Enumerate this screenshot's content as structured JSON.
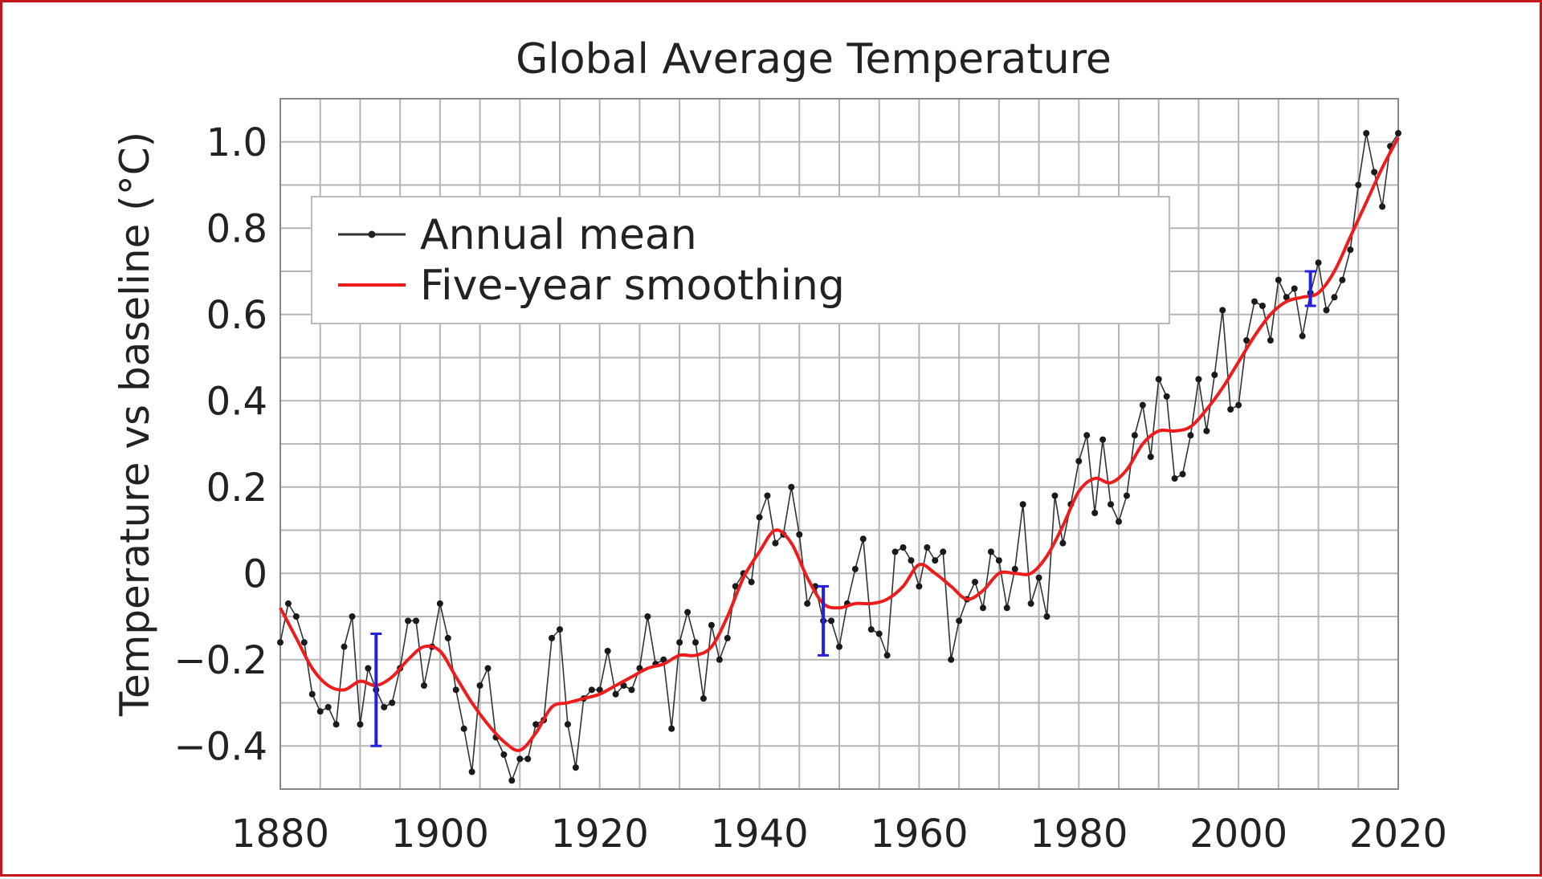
{
  "chart_data": {
    "type": "line",
    "title": "Global Average Temperature",
    "xlabel": "",
    "ylabel": "Temperature vs baseline (°C)",
    "xlim": [
      1880,
      2020
    ],
    "ylim": [
      -0.5,
      1.1
    ],
    "grid": true,
    "x_ticks": [
      1880,
      1900,
      1920,
      1940,
      1960,
      1980,
      2000,
      2020
    ],
    "x_tick_labels": [
      "1880",
      "1900",
      "1920",
      "1940",
      "1960",
      "1980",
      "2000",
      "2020"
    ],
    "y_ticks": [
      -0.4,
      -0.2,
      0,
      0.2,
      0.4,
      0.6,
      0.8,
      1.0
    ],
    "y_tick_labels": [
      "−0.4",
      "−0.2",
      "0",
      "0.2",
      "0.4",
      "0.6",
      "0.8",
      "1.0"
    ],
    "legend": {
      "position": "top-left",
      "entries": [
        "Annual mean",
        "Five-year smoothing"
      ]
    },
    "colors": {
      "annual": "#333333",
      "smoothing": "#ee1c1c",
      "error_bar": "#2222dd",
      "grid": "#b5b5b5",
      "frame": "#c4161c"
    },
    "series": [
      {
        "name": "Annual mean",
        "x": [
          1880,
          1881,
          1882,
          1883,
          1884,
          1885,
          1886,
          1887,
          1888,
          1889,
          1890,
          1891,
          1892,
          1893,
          1894,
          1895,
          1896,
          1897,
          1898,
          1899,
          1900,
          1901,
          1902,
          1903,
          1904,
          1905,
          1906,
          1907,
          1908,
          1909,
          1910,
          1911,
          1912,
          1913,
          1914,
          1915,
          1916,
          1917,
          1918,
          1919,
          1920,
          1921,
          1922,
          1923,
          1924,
          1925,
          1926,
          1927,
          1928,
          1929,
          1930,
          1931,
          1932,
          1933,
          1934,
          1935,
          1936,
          1937,
          1938,
          1939,
          1940,
          1941,
          1942,
          1943,
          1944,
          1945,
          1946,
          1947,
          1948,
          1949,
          1950,
          1951,
          1952,
          1953,
          1954,
          1955,
          1956,
          1957,
          1958,
          1959,
          1960,
          1961,
          1962,
          1963,
          1964,
          1965,
          1966,
          1967,
          1968,
          1969,
          1970,
          1971,
          1972,
          1973,
          1974,
          1975,
          1976,
          1977,
          1978,
          1979,
          1980,
          1981,
          1982,
          1983,
          1984,
          1985,
          1986,
          1987,
          1988,
          1989,
          1990,
          1991,
          1992,
          1993,
          1994,
          1995,
          1996,
          1997,
          1998,
          1999,
          2000,
          2001,
          2002,
          2003,
          2004,
          2005,
          2006,
          2007,
          2008,
          2009,
          2010,
          2011,
          2012,
          2013,
          2014,
          2015,
          2016,
          2017,
          2018,
          2019,
          2020
        ],
        "values": [
          -0.16,
          -0.07,
          -0.1,
          -0.16,
          -0.28,
          -0.32,
          -0.31,
          -0.35,
          -0.17,
          -0.1,
          -0.35,
          -0.22,
          -0.27,
          -0.31,
          -0.3,
          -0.22,
          -0.11,
          -0.11,
          -0.26,
          -0.17,
          -0.07,
          -0.15,
          -0.27,
          -0.36,
          -0.46,
          -0.26,
          -0.22,
          -0.38,
          -0.42,
          -0.48,
          -0.43,
          -0.43,
          -0.35,
          -0.34,
          -0.15,
          -0.13,
          -0.35,
          -0.45,
          -0.29,
          -0.27,
          -0.27,
          -0.18,
          -0.28,
          -0.26,
          -0.27,
          -0.22,
          -0.1,
          -0.21,
          -0.2,
          -0.36,
          -0.16,
          -0.09,
          -0.16,
          -0.29,
          -0.12,
          -0.2,
          -0.15,
          -0.03,
          0.0,
          -0.02,
          0.13,
          0.18,
          0.07,
          0.09,
          0.2,
          0.09,
          -0.07,
          -0.03,
          -0.11,
          -0.11,
          -0.17,
          -0.07,
          0.01,
          0.08,
          -0.13,
          -0.14,
          -0.19,
          0.05,
          0.06,
          0.03,
          -0.03,
          0.06,
          0.03,
          0.05,
          -0.2,
          -0.11,
          -0.06,
          -0.02,
          -0.08,
          0.05,
          0.03,
          -0.08,
          0.01,
          0.16,
          -0.07,
          -0.01,
          -0.1,
          0.18,
          0.07,
          0.16,
          0.26,
          0.32,
          0.14,
          0.31,
          0.16,
          0.12,
          0.18,
          0.32,
          0.39,
          0.27,
          0.45,
          0.41,
          0.22,
          0.23,
          0.32,
          0.45,
          0.33,
          0.46,
          0.61,
          0.38,
          0.39,
          0.54,
          0.63,
          0.62,
          0.54,
          0.68,
          0.64,
          0.66,
          0.55,
          0.65,
          0.72,
          0.61,
          0.64,
          0.68,
          0.75,
          0.9,
          1.02,
          0.93,
          0.85,
          0.99,
          1.02
        ]
      },
      {
        "name": "Five-year smoothing",
        "x": [
          1880,
          1882,
          1884,
          1886,
          1888,
          1890,
          1892,
          1894,
          1896,
          1898,
          1900,
          1902,
          1904,
          1906,
          1908,
          1910,
          1912,
          1914,
          1916,
          1918,
          1920,
          1922,
          1924,
          1926,
          1928,
          1930,
          1932,
          1934,
          1936,
          1938,
          1940,
          1942,
          1944,
          1946,
          1948,
          1950,
          1952,
          1954,
          1956,
          1958,
          1960,
          1962,
          1964,
          1966,
          1968,
          1970,
          1972,
          1974,
          1976,
          1978,
          1980,
          1982,
          1984,
          1986,
          1988,
          1990,
          1992,
          1994,
          1996,
          1998,
          2000,
          2002,
          2004,
          2006,
          2008,
          2010,
          2012,
          2014,
          2016,
          2018,
          2020
        ],
        "values": [
          -0.08,
          -0.15,
          -0.22,
          -0.26,
          -0.27,
          -0.25,
          -0.26,
          -0.24,
          -0.2,
          -0.17,
          -0.18,
          -0.24,
          -0.3,
          -0.35,
          -0.39,
          -0.41,
          -0.37,
          -0.31,
          -0.3,
          -0.29,
          -0.28,
          -0.26,
          -0.24,
          -0.22,
          -0.21,
          -0.19,
          -0.19,
          -0.17,
          -0.1,
          -0.01,
          0.05,
          0.1,
          0.07,
          -0.01,
          -0.07,
          -0.08,
          -0.07,
          -0.07,
          -0.06,
          -0.03,
          0.02,
          0.0,
          -0.03,
          -0.06,
          -0.04,
          0.0,
          0.0,
          0.0,
          0.04,
          0.11,
          0.19,
          0.22,
          0.21,
          0.24,
          0.3,
          0.33,
          0.33,
          0.34,
          0.38,
          0.43,
          0.49,
          0.55,
          0.6,
          0.63,
          0.64,
          0.65,
          0.7,
          0.78,
          0.86,
          0.94,
          1.01
        ]
      }
    ],
    "error_bars": [
      {
        "x": 1892,
        "low": -0.4,
        "high": -0.14
      },
      {
        "x": 1948,
        "low": -0.19,
        "high": -0.03
      },
      {
        "x": 2009,
        "low": 0.62,
        "high": 0.7
      }
    ]
  }
}
